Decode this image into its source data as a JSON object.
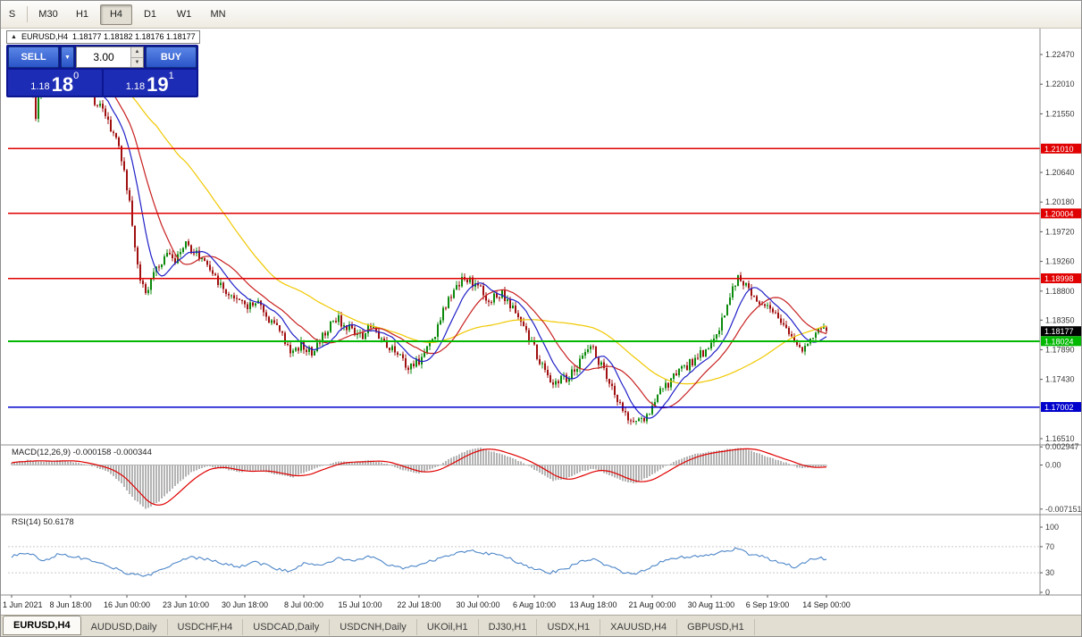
{
  "toolbar": {
    "clipped_button": "S",
    "timeframes": [
      "M30",
      "H1",
      "H4",
      "D1",
      "W1",
      "MN"
    ],
    "active": "H4"
  },
  "chart_header": {
    "collapse_icon": "▲",
    "symbol": "EURUSD,H4",
    "ohlc": "1.18177 1.18182 1.18176 1.18177"
  },
  "trade_panel": {
    "sell_label": "SELL",
    "buy_label": "BUY",
    "volume": "3.00",
    "dropdown_icon": "▼",
    "spin_up_icon": "▲",
    "spin_down_icon": "▼",
    "sell_price": {
      "prefix": "1.18",
      "big": "18",
      "sup": "0"
    },
    "buy_price": {
      "prefix": "1.18",
      "big": "19",
      "sup": "1"
    },
    "colors": {
      "panel_bg": "#0b1690",
      "cell_bg": "#1d2cb4",
      "button_bg": "#2f5fd0"
    }
  },
  "chart_data": [
    {
      "type": "candlestick",
      "title": "EURUSD,H4",
      "ohlc_text": "1.18177 1.18182 1.18176 1.18177",
      "bars_rendered": 305,
      "ylim": [
        1.16413,
        1.22581
      ],
      "y_tick_labels": [
        "1.22470",
        "1.22010",
        "1.21550",
        "1.20640",
        "1.20180",
        "1.19720",
        "1.19260",
        "1.18800",
        "1.18350",
        "1.17890",
        "1.17430",
        "1.16510"
      ],
      "x_tick_labels": [
        "1 Jun 2021",
        "8 Jun 18:00",
        "16 Jun 00:00",
        "23 Jun 10:00",
        "30 Jun 18:00",
        "8 Jul 00:00",
        "15 Jul 10:00",
        "22 Jul 18:00",
        "30 Jul 00:00",
        "6 Aug 10:00",
        "13 Aug 18:00",
        "21 Aug 00:00",
        "30 Aug 11:00",
        "6 Sep 19:00",
        "14 Sep 00:00"
      ],
      "horizontal_lines": [
        {
          "value": 1.2101,
          "label": "1.21010",
          "color": "#e00000",
          "width": 1.5
        },
        {
          "value": 1.20004,
          "label": "1.20004",
          "color": "#e00000",
          "width": 1.5
        },
        {
          "value": 1.18998,
          "label": "1.18998",
          "color": "#e00000",
          "width": 1.5
        },
        {
          "value": 1.18024,
          "label": "1.18024",
          "color": "#00b800",
          "width": 2
        },
        {
          "value": 1.17002,
          "label": "1.17002",
          "color": "#0000cc",
          "width": 1.5
        }
      ],
      "current_price": {
        "value": 1.18177,
        "label": "1.18177",
        "bg": "#000000",
        "fg": "#ffffff"
      },
      "colors": {
        "up": "#0c8a0c",
        "down": "#a01010",
        "ma_fast": "#2020c8",
        "ma_mid": "#c82020",
        "ma_slow": "#f0c800",
        "background": "#ffffff"
      },
      "moving_average_periods": [
        10,
        20,
        55
      ],
      "price_path": [
        [
          0.0,
          1.2228
        ],
        [
          0.008,
          1.2248
        ],
        [
          0.015,
          1.2226
        ],
        [
          0.022,
          1.2244
        ],
        [
          0.03,
          1.215
        ],
        [
          0.038,
          1.2232
        ],
        [
          0.048,
          1.225
        ],
        [
          0.058,
          1.2228
        ],
        [
          0.066,
          1.2242
        ],
        [
          0.071,
          1.221
        ],
        [
          0.08,
          1.2188
        ],
        [
          0.09,
          1.2206
        ],
        [
          0.1,
          1.2178
        ],
        [
          0.112,
          1.2158
        ],
        [
          0.125,
          1.2122
        ],
        [
          0.135,
          1.2088
        ],
        [
          0.143,
          1.203
        ],
        [
          0.15,
          1.1962
        ],
        [
          0.158,
          1.1902
        ],
        [
          0.165,
          1.1868
        ],
        [
          0.172,
          1.1898
        ],
        [
          0.18,
          1.1922
        ],
        [
          0.19,
          1.1938
        ],
        [
          0.2,
          1.1926
        ],
        [
          0.214,
          1.195
        ],
        [
          0.225,
          1.1944
        ],
        [
          0.235,
          1.1926
        ],
        [
          0.25,
          1.1898
        ],
        [
          0.265,
          1.1878
        ],
        [
          0.286,
          1.1856
        ],
        [
          0.3,
          1.1868
        ],
        [
          0.315,
          1.1838
        ],
        [
          0.33,
          1.1812
        ],
        [
          0.345,
          1.178
        ],
        [
          0.357,
          1.1798
        ],
        [
          0.37,
          1.1784
        ],
        [
          0.385,
          1.1818
        ],
        [
          0.4,
          1.1836
        ],
        [
          0.415,
          1.1822
        ],
        [
          0.429,
          1.181
        ],
        [
          0.443,
          1.1826
        ],
        [
          0.457,
          1.18
        ],
        [
          0.471,
          1.1784
        ],
        [
          0.486,
          1.176
        ],
        [
          0.5,
          1.1772
        ],
        [
          0.515,
          1.18
        ],
        [
          0.53,
          1.1848
        ],
        [
          0.545,
          1.1884
        ],
        [
          0.557,
          1.1902
        ],
        [
          0.571,
          1.1888
        ],
        [
          0.585,
          1.1866
        ],
        [
          0.6,
          1.1878
        ],
        [
          0.615,
          1.1856
        ],
        [
          0.63,
          1.1818
        ],
        [
          0.643,
          1.1786
        ],
        [
          0.655,
          1.175
        ],
        [
          0.668,
          1.1736
        ],
        [
          0.68,
          1.1746
        ],
        [
          0.695,
          1.1766
        ],
        [
          0.707,
          1.1794
        ],
        [
          0.714,
          1.1786
        ],
        [
          0.725,
          1.1762
        ],
        [
          0.737,
          1.1728
        ],
        [
          0.75,
          1.1696
        ],
        [
          0.762,
          1.167
        ],
        [
          0.775,
          1.168
        ],
        [
          0.786,
          1.17
        ],
        [
          0.8,
          1.173
        ],
        [
          0.815,
          1.175
        ],
        [
          0.83,
          1.1766
        ],
        [
          0.845,
          1.178
        ],
        [
          0.857,
          1.1798
        ],
        [
          0.87,
          1.183
        ],
        [
          0.88,
          1.187
        ],
        [
          0.89,
          1.19
        ],
        [
          0.9,
          1.1886
        ],
        [
          0.912,
          1.187
        ],
        [
          0.929,
          1.186
        ],
        [
          0.94,
          1.1844
        ],
        [
          0.95,
          1.1826
        ],
        [
          0.96,
          1.18
        ],
        [
          0.968,
          1.1786
        ],
        [
          0.978,
          1.1806
        ],
        [
          0.988,
          1.1816
        ],
        [
          1.0,
          1.18177
        ]
      ]
    },
    {
      "type": "macd_histogram",
      "label": "MACD(12,26,9)",
      "values_text": "-0.000158 -0.000344",
      "y_tick_labels": [
        "0.002947",
        "0.00",
        "-0.007151"
      ],
      "colors": {
        "histogram": "#b4b4b4",
        "signal": "#e00000"
      },
      "path": [
        [
          0.0,
          0.0004
        ],
        [
          0.02,
          0.0008
        ],
        [
          0.04,
          0.0005
        ],
        [
          0.06,
          0.0008
        ],
        [
          0.08,
          0.0004
        ],
        [
          0.1,
          -0.0002
        ],
        [
          0.12,
          -0.0012
        ],
        [
          0.135,
          -0.003
        ],
        [
          0.15,
          -0.0055
        ],
        [
          0.165,
          -0.0072
        ],
        [
          0.18,
          -0.006
        ],
        [
          0.2,
          -0.0035
        ],
        [
          0.22,
          -0.0012
        ],
        [
          0.24,
          -0.0002
        ],
        [
          0.26,
          -0.0006
        ],
        [
          0.28,
          -0.0012
        ],
        [
          0.3,
          -0.0008
        ],
        [
          0.32,
          -0.0014
        ],
        [
          0.345,
          -0.002
        ],
        [
          0.36,
          -0.0012
        ],
        [
          0.38,
          -0.0002
        ],
        [
          0.4,
          0.0006
        ],
        [
          0.42,
          0.0004
        ],
        [
          0.44,
          0.0008
        ],
        [
          0.46,
          0.0002
        ],
        [
          0.48,
          -0.0008
        ],
        [
          0.5,
          -0.0014
        ],
        [
          0.52,
          -0.0004
        ],
        [
          0.54,
          0.0012
        ],
        [
          0.56,
          0.0024
        ],
        [
          0.575,
          0.0028
        ],
        [
          0.59,
          0.0022
        ],
        [
          0.61,
          0.0014
        ],
        [
          0.63,
          0.0002
        ],
        [
          0.65,
          -0.0014
        ],
        [
          0.665,
          -0.0026
        ],
        [
          0.68,
          -0.0022
        ],
        [
          0.7,
          -0.001
        ],
        [
          0.715,
          -0.0006
        ],
        [
          0.73,
          -0.0014
        ],
        [
          0.75,
          -0.0026
        ],
        [
          0.765,
          -0.003
        ],
        [
          0.78,
          -0.002
        ],
        [
          0.8,
          -0.0004
        ],
        [
          0.82,
          0.001
        ],
        [
          0.84,
          0.0018
        ],
        [
          0.86,
          0.0022
        ],
        [
          0.88,
          0.0026
        ],
        [
          0.895,
          0.0028
        ],
        [
          0.91,
          0.0022
        ],
        [
          0.93,
          0.0012
        ],
        [
          0.95,
          0.0004
        ],
        [
          0.965,
          -0.0005
        ],
        [
          0.98,
          -0.0004
        ],
        [
          1.0,
          -0.00016
        ]
      ]
    },
    {
      "type": "rsi",
      "label": "RSI(14)",
      "value_text": "50.6178",
      "y_tick_labels": [
        "100",
        "70",
        "30",
        "0"
      ],
      "levels": [
        70,
        30
      ],
      "color": "#4d86c8",
      "path": [
        [
          0.0,
          55
        ],
        [
          0.02,
          62
        ],
        [
          0.04,
          48
        ],
        [
          0.06,
          60
        ],
        [
          0.08,
          54
        ],
        [
          0.1,
          47
        ],
        [
          0.12,
          40
        ],
        [
          0.14,
          30
        ],
        [
          0.165,
          25
        ],
        [
          0.18,
          32
        ],
        [
          0.2,
          44
        ],
        [
          0.22,
          54
        ],
        [
          0.24,
          50
        ],
        [
          0.26,
          44
        ],
        [
          0.28,
          39
        ],
        [
          0.3,
          46
        ],
        [
          0.32,
          38
        ],
        [
          0.34,
          32
        ],
        [
          0.36,
          45
        ],
        [
          0.38,
          40
        ],
        [
          0.4,
          53
        ],
        [
          0.42,
          48
        ],
        [
          0.44,
          56
        ],
        [
          0.46,
          44
        ],
        [
          0.48,
          36
        ],
        [
          0.5,
          42
        ],
        [
          0.52,
          50
        ],
        [
          0.54,
          58
        ],
        [
          0.56,
          64
        ],
        [
          0.58,
          60
        ],
        [
          0.6,
          58
        ],
        [
          0.62,
          47
        ],
        [
          0.64,
          36
        ],
        [
          0.66,
          30
        ],
        [
          0.68,
          36
        ],
        [
          0.7,
          48
        ],
        [
          0.715,
          52
        ],
        [
          0.73,
          41
        ],
        [
          0.75,
          31
        ],
        [
          0.765,
          27
        ],
        [
          0.78,
          36
        ],
        [
          0.8,
          48
        ],
        [
          0.82,
          53
        ],
        [
          0.84,
          56
        ],
        [
          0.86,
          59
        ],
        [
          0.875,
          63
        ],
        [
          0.89,
          67
        ],
        [
          0.905,
          59
        ],
        [
          0.92,
          55
        ],
        [
          0.935,
          49
        ],
        [
          0.95,
          44
        ],
        [
          0.962,
          38
        ],
        [
          0.975,
          47
        ],
        [
          0.99,
          54
        ],
        [
          1.0,
          50.6
        ]
      ]
    }
  ],
  "bottom_tabs": {
    "active_index": 0,
    "tabs": [
      "EURUSD,H4",
      "AUDUSD,Daily",
      "USDCHF,H4",
      "USDCAD,Daily",
      "USDCNH,Daily",
      "UKOil,H1",
      "DJ30,H1",
      "USDX,H1",
      "XAUUSD,H4",
      "GBPUSD,H1"
    ]
  }
}
